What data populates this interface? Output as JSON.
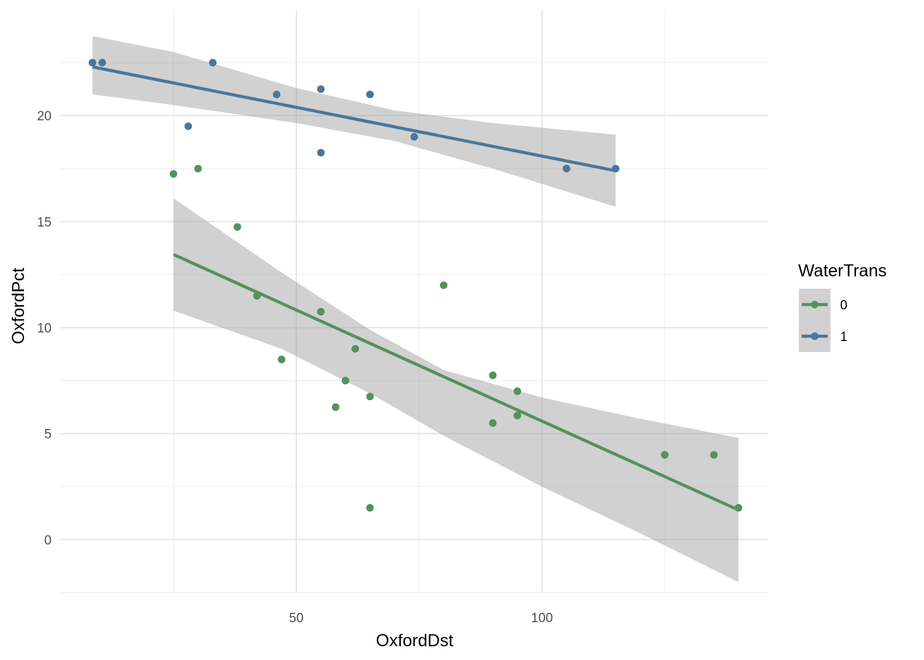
{
  "chart_data": {
    "type": "scatter",
    "xlabel": "OxfordDst",
    "ylabel": "OxfordPct",
    "xlim": [
      2,
      146
    ],
    "ylim": [
      -2.5,
      25
    ],
    "x_ticks": [
      50,
      100
    ],
    "x_ticks_minor": [
      25,
      75,
      125
    ],
    "y_ticks": [
      0,
      5,
      10,
      15,
      20
    ],
    "y_ticks_minor": [
      -2.5,
      2.5,
      7.5,
      12.5,
      17.5,
      22.5
    ],
    "grid": true,
    "legend": {
      "title": "WaterTrans",
      "placement": "right",
      "entries": [
        {
          "label": "0",
          "color": "#55915E"
        },
        {
          "label": "1",
          "color": "#4B7699"
        }
      ]
    },
    "series": [
      {
        "name": "0",
        "color": "#55915E",
        "points": [
          [
            25,
            17.25
          ],
          [
            30,
            17.5
          ],
          [
            38,
            14.75
          ],
          [
            42,
            11.5
          ],
          [
            47,
            8.5
          ],
          [
            55,
            10.75
          ],
          [
            58,
            6.25
          ],
          [
            60,
            7.5
          ],
          [
            62,
            9
          ],
          [
            65,
            6.75
          ],
          [
            65,
            1.5
          ],
          [
            80,
            12
          ],
          [
            90,
            7.75
          ],
          [
            90,
            5.5
          ],
          [
            95,
            7
          ],
          [
            95,
            5.85
          ],
          [
            125,
            4
          ],
          [
            135,
            4
          ],
          [
            140,
            1.5
          ]
        ],
        "fit": {
          "x": [
            25,
            140
          ],
          "y": [
            13.45,
            1.4
          ]
        },
        "ci_upper": [
          [
            25,
            16.1
          ],
          [
            47,
            12.6
          ],
          [
            65,
            9.9
          ],
          [
            80,
            8.0
          ],
          [
            100,
            6.7
          ],
          [
            120,
            5.7
          ],
          [
            140,
            4.8
          ]
        ],
        "ci_lower": [
          [
            25,
            10.8
          ],
          [
            47,
            9.0
          ],
          [
            65,
            6.9
          ],
          [
            80,
            4.9
          ],
          [
            100,
            2.5
          ],
          [
            120,
            0.3
          ],
          [
            140,
            -2.0
          ]
        ]
      },
      {
        "name": "1",
        "color": "#4B7699",
        "points": [
          [
            8.5,
            22.5
          ],
          [
            10.5,
            22.5
          ],
          [
            28,
            19.5
          ],
          [
            33,
            22.5
          ],
          [
            46,
            21
          ],
          [
            55,
            21.25
          ],
          [
            55,
            18.25
          ],
          [
            65,
            21
          ],
          [
            74,
            19
          ],
          [
            105,
            17.5
          ],
          [
            115,
            17.5
          ]
        ],
        "fit": {
          "x": [
            8.5,
            115
          ],
          "y": [
            22.3,
            17.4
          ]
        },
        "ci_upper": [
          [
            8.5,
            23.75
          ],
          [
            25,
            23.0
          ],
          [
            50,
            21.3
          ],
          [
            70,
            20.25
          ],
          [
            90,
            19.65
          ],
          [
            115,
            19.1
          ]
        ],
        "ci_lower": [
          [
            8.5,
            21.0
          ],
          [
            25,
            20.5
          ],
          [
            50,
            19.65
          ],
          [
            70,
            18.8
          ],
          [
            90,
            17.5
          ],
          [
            115,
            15.7
          ]
        ]
      }
    ]
  },
  "colors": {
    "ribbon": "#999999",
    "grid_major": "#e5e5e5",
    "grid_minor": "#efefef"
  }
}
